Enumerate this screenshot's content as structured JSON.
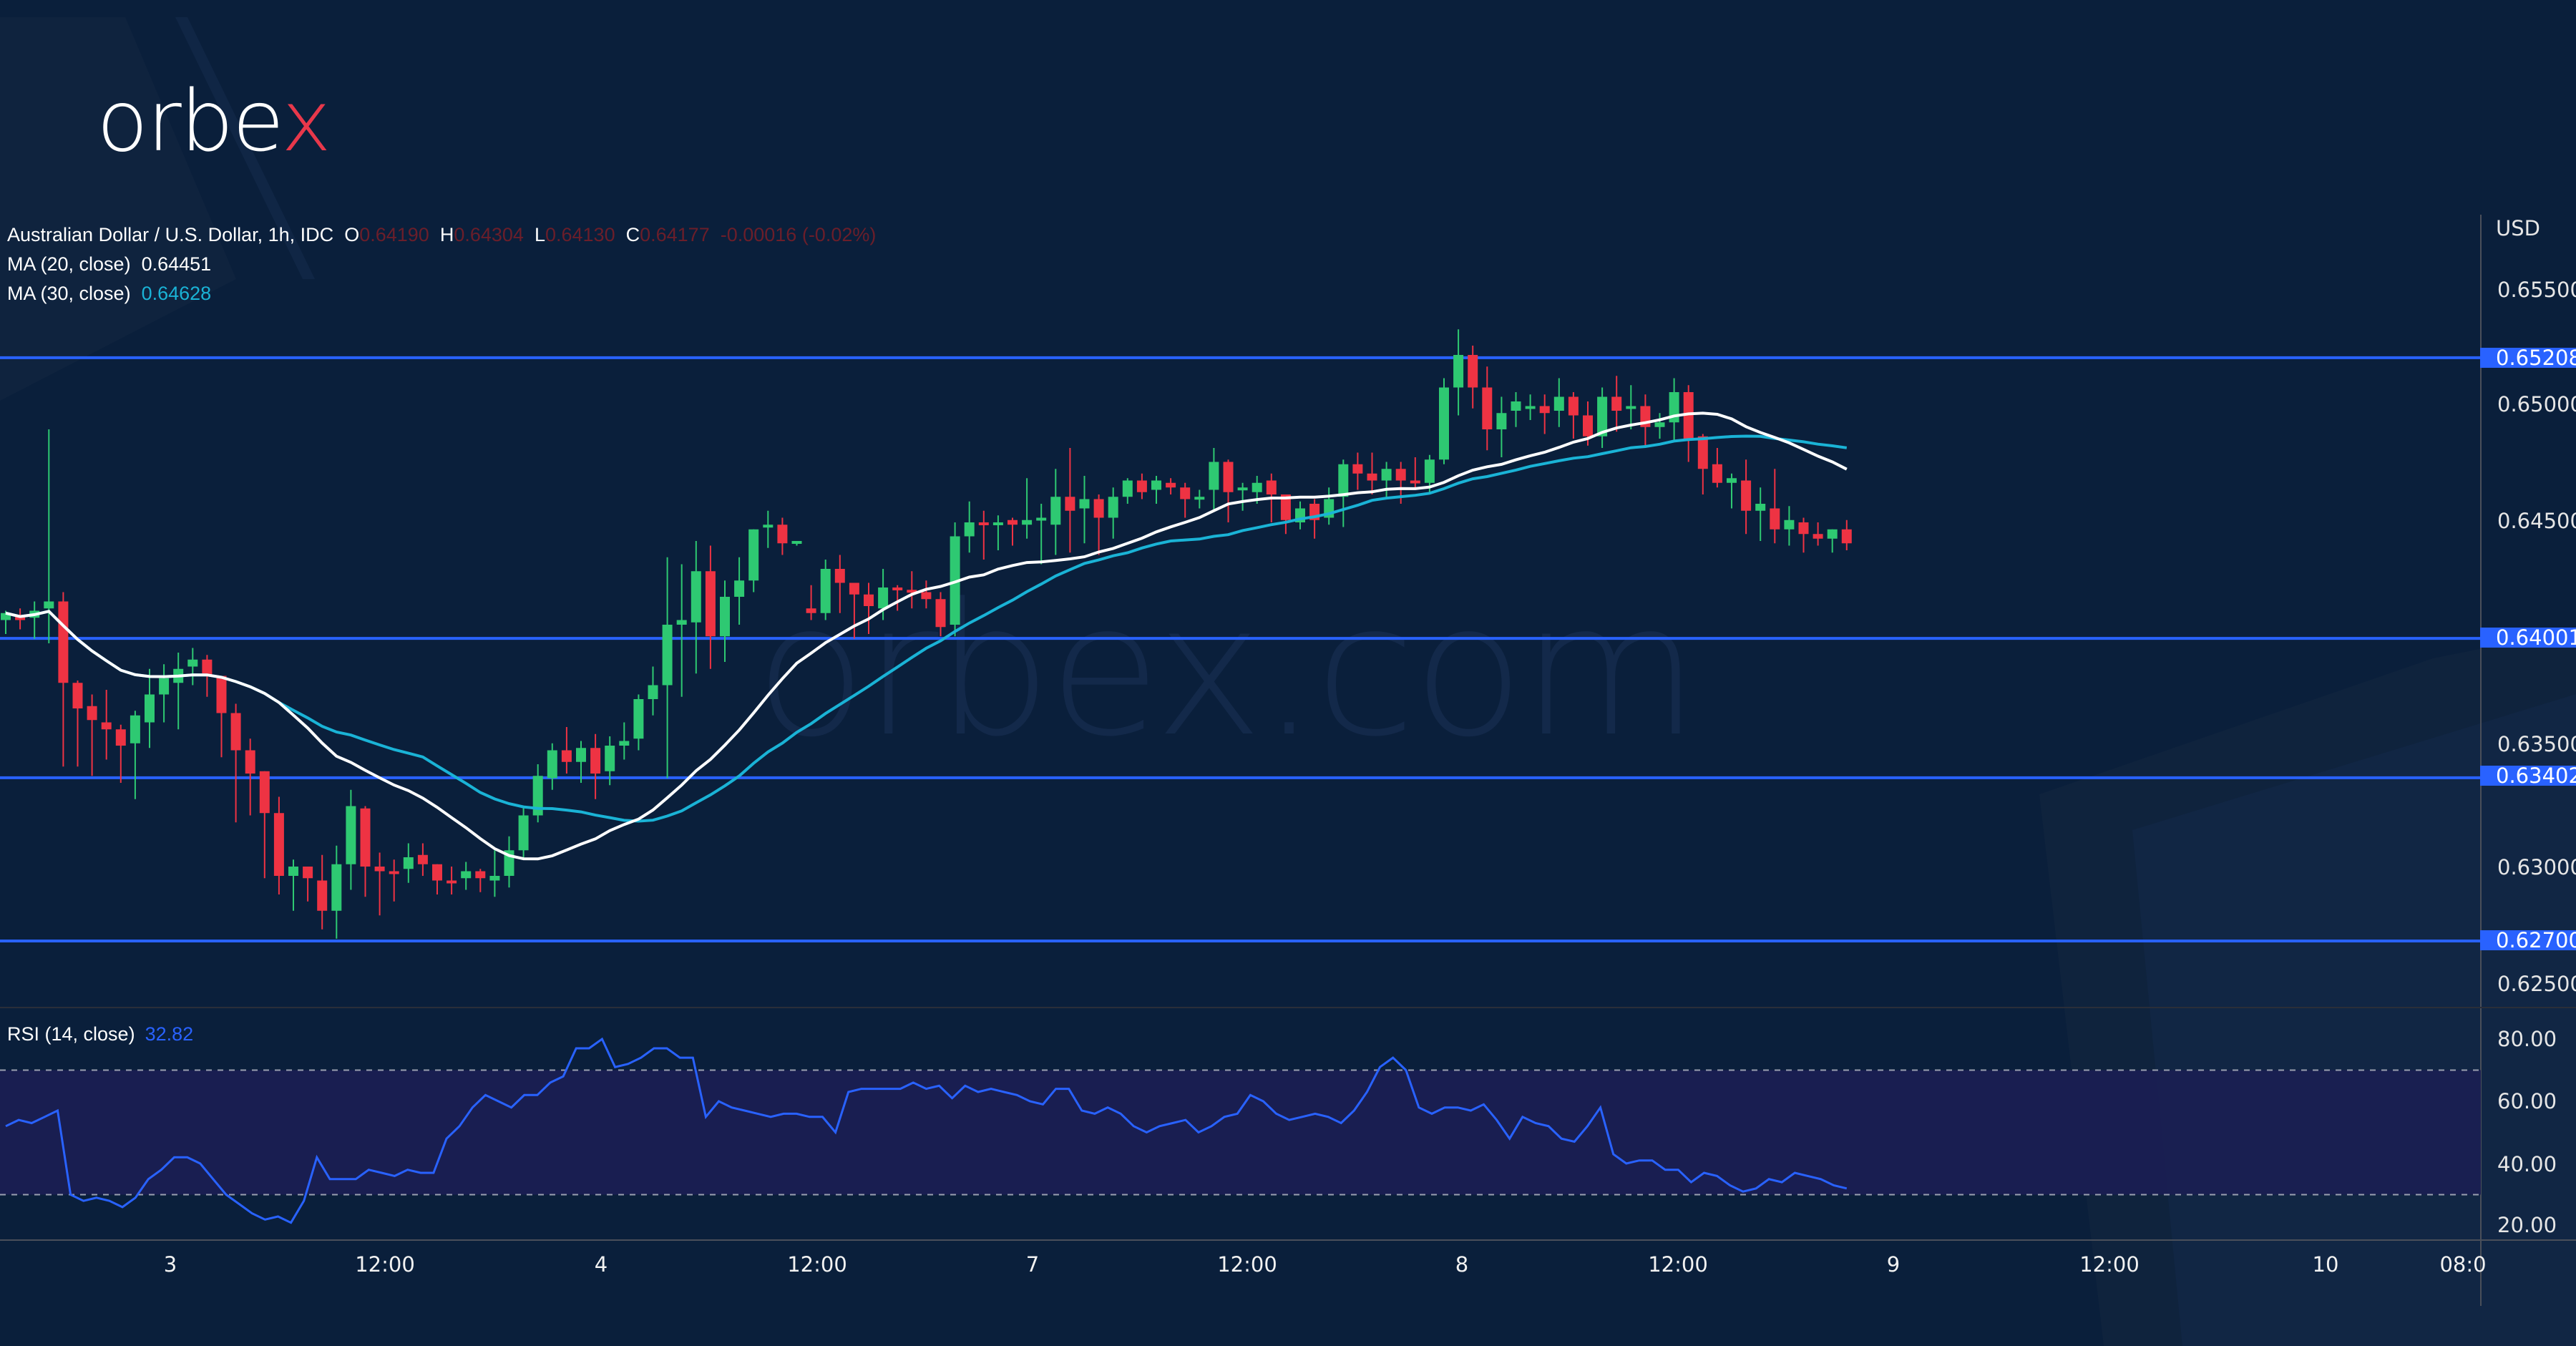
{
  "brand": {
    "logo_text_main": "orbe",
    "logo_text_accent": "x",
    "watermark": "orbex.com"
  },
  "legend": {
    "symbol": "Australian Dollar / U.S. Dollar, 1h, IDC",
    "o_label": "O",
    "o_value": "0.64190",
    "h_label": "H",
    "h_value": "0.64304",
    "l_label": "L",
    "l_value": "0.64130",
    "c_label": "C",
    "c_value": "0.64177",
    "change": "-0.00016 (-0.02%)",
    "ma20_label": "MA (20, close)",
    "ma20_value": "0.64451",
    "ma30_label": "MA (30, close)",
    "ma30_value": "0.64628"
  },
  "rsi": {
    "label": "RSI (14, close)",
    "value": "32.82"
  },
  "axis": {
    "currency": "USD",
    "price_ticks": [
      "0.65500",
      "0.65000",
      "0.64500",
      "0.63500",
      "0.63000",
      "0.62500"
    ],
    "rsi_ticks": [
      "80.00",
      "60.00",
      "40.00",
      "20.00"
    ],
    "time_ticks": [
      "3",
      "12:00",
      "4",
      "12:00",
      "7",
      "12:00",
      "8",
      "12:00",
      "9",
      "12:00",
      "10",
      "08:0"
    ]
  },
  "levels": [
    {
      "label": "0.65208",
      "value": 0.65208
    },
    {
      "label": "0.64001",
      "value": 0.64001
    },
    {
      "label": "0.63402",
      "value": 0.63402
    },
    {
      "label": "0.62700",
      "value": 0.627
    }
  ],
  "colors": {
    "up": "#2ec972",
    "down": "#ee3343",
    "ma20": "#ffffff",
    "ma30": "#1ab3d6",
    "level": "#2962ff",
    "rsi": "#2962ff",
    "background": "#0a1f3b",
    "rsi_band": "#1a1f52"
  },
  "chart_data": {
    "type": "candlestick",
    "title": "Australian Dollar / U.S. Dollar, 1h, IDC",
    "ylabel": "USD",
    "ylim": [
      0.6238,
      0.6575
    ],
    "horizontal_levels": [
      0.65208,
      0.64001,
      0.63402,
      0.627
    ],
    "x_ticks": [
      {
        "label": "3",
        "index": 11
      },
      {
        "label": "12:00",
        "index": 26
      },
      {
        "label": "4",
        "index": 41
      },
      {
        "label": "12:00",
        "index": 56
      },
      {
        "label": "7",
        "index": 71
      },
      {
        "label": "12:00",
        "index": 86
      },
      {
        "label": "8",
        "index": 101
      },
      {
        "label": "12:00",
        "index": 116
      },
      {
        "label": "9",
        "index": 131
      },
      {
        "label": "12:00",
        "index": 146
      },
      {
        "label": "10",
        "index": 161
      },
      {
        "label": "08:0",
        "index": 170
      }
    ],
    "candles": [
      [
        0.6408,
        0.6411,
        0.6402,
        0.6412
      ],
      [
        0.641,
        0.6408,
        0.6404,
        0.6413
      ],
      [
        0.6409,
        0.6412,
        0.64,
        0.6416
      ],
      [
        0.6413,
        0.6416,
        0.6398,
        0.649
      ],
      [
        0.6416,
        0.6381,
        0.6345,
        0.642
      ],
      [
        0.6381,
        0.637,
        0.6345,
        0.6382
      ],
      [
        0.6371,
        0.6365,
        0.6341,
        0.6376
      ],
      [
        0.6364,
        0.6361,
        0.6348,
        0.6378
      ],
      [
        0.6361,
        0.6354,
        0.6338,
        0.6363
      ],
      [
        0.6355,
        0.6367,
        0.6331,
        0.6369
      ],
      [
        0.6364,
        0.6376,
        0.6353,
        0.6387
      ],
      [
        0.6376,
        0.6383,
        0.6364,
        0.6389
      ],
      [
        0.6381,
        0.6387,
        0.6361,
        0.6394
      ],
      [
        0.6388,
        0.6391,
        0.638,
        0.6396
      ],
      [
        0.6391,
        0.6384,
        0.6375,
        0.6393
      ],
      [
        0.6384,
        0.6368,
        0.6349,
        0.6384
      ],
      [
        0.6368,
        0.6352,
        0.6321,
        0.6372
      ],
      [
        0.6352,
        0.6342,
        0.6324,
        0.6357
      ],
      [
        0.6343,
        0.6325,
        0.6297,
        0.6343
      ],
      [
        0.6325,
        0.6298,
        0.629,
        0.6332
      ],
      [
        0.6298,
        0.6302,
        0.6283,
        0.6305
      ],
      [
        0.6302,
        0.6297,
        0.6287,
        0.6301
      ],
      [
        0.6296,
        0.6283,
        0.6275,
        0.6307
      ],
      [
        0.6283,
        0.6303,
        0.6271,
        0.6311
      ],
      [
        0.6303,
        0.6328,
        0.6292,
        0.6335
      ],
      [
        0.6327,
        0.6302,
        0.6289,
        0.6328
      ],
      [
        0.6302,
        0.63,
        0.6281,
        0.6308
      ],
      [
        0.63,
        0.6299,
        0.6287,
        0.6305
      ],
      [
        0.6301,
        0.6306,
        0.6295,
        0.6312
      ],
      [
        0.6307,
        0.6303,
        0.6298,
        0.6312
      ],
      [
        0.6303,
        0.6296,
        0.629,
        0.6303
      ],
      [
        0.6296,
        0.6295,
        0.629,
        0.6302
      ],
      [
        0.6297,
        0.63,
        0.6292,
        0.6304
      ],
      [
        0.63,
        0.6297,
        0.6291,
        0.6301
      ],
      [
        0.6296,
        0.6298,
        0.6289,
        0.6309
      ],
      [
        0.6298,
        0.6309,
        0.6293,
        0.6315
      ],
      [
        0.6309,
        0.6324,
        0.6305,
        0.6328
      ],
      [
        0.6324,
        0.6341,
        0.6321,
        0.6346
      ],
      [
        0.634,
        0.6352,
        0.6335,
        0.6355
      ],
      [
        0.6352,
        0.6347,
        0.6342,
        0.6362
      ],
      [
        0.6347,
        0.6353,
        0.6338,
        0.6356
      ],
      [
        0.6353,
        0.6342,
        0.6331,
        0.6359
      ],
      [
        0.6343,
        0.6354,
        0.6337,
        0.6358
      ],
      [
        0.6354,
        0.6356,
        0.6348,
        0.6364
      ],
      [
        0.6357,
        0.6374,
        0.6352,
        0.6376
      ],
      [
        0.6374,
        0.638,
        0.6367,
        0.6388
      ],
      [
        0.638,
        0.6406,
        0.634,
        0.6435
      ],
      [
        0.6406,
        0.6408,
        0.6375,
        0.6432
      ],
      [
        0.6407,
        0.6429,
        0.6385,
        0.6442
      ],
      [
        0.6429,
        0.6401,
        0.6387,
        0.644
      ],
      [
        0.6401,
        0.6418,
        0.639,
        0.6425
      ],
      [
        0.6418,
        0.6425,
        0.6406,
        0.6435
      ],
      [
        0.6425,
        0.6447,
        0.642,
        0.6447
      ],
      [
        0.6448,
        0.6449,
        0.6439,
        0.6455
      ],
      [
        0.6449,
        0.6441,
        0.6436,
        0.6452
      ],
      [
        0.6441,
        0.6442,
        0.644,
        0.6442
      ],
      [
        0.6413,
        0.6411,
        0.6408,
        0.6423
      ],
      [
        0.6411,
        0.643,
        0.6408,
        0.6434
      ],
      [
        0.643,
        0.6424,
        0.6411,
        0.6436
      ],
      [
        0.6424,
        0.6419,
        0.64,
        0.6424
      ],
      [
        0.6419,
        0.6414,
        0.6402,
        0.6424
      ],
      [
        0.6413,
        0.6422,
        0.6408,
        0.643
      ],
      [
        0.6422,
        0.6421,
        0.6412,
        0.6423
      ],
      [
        0.6421,
        0.642,
        0.6413,
        0.6429
      ],
      [
        0.642,
        0.6417,
        0.6413,
        0.6425
      ],
      [
        0.6417,
        0.6405,
        0.6401,
        0.642
      ],
      [
        0.6406,
        0.6444,
        0.6401,
        0.645
      ],
      [
        0.6444,
        0.645,
        0.6437,
        0.6459
      ],
      [
        0.645,
        0.6449,
        0.6434,
        0.6455
      ],
      [
        0.6449,
        0.645,
        0.6438,
        0.6453
      ],
      [
        0.6451,
        0.6449,
        0.644,
        0.6452
      ],
      [
        0.6449,
        0.6451,
        0.6443,
        0.6469
      ],
      [
        0.6452,
        0.6452,
        0.6432,
        0.6458
      ],
      [
        0.6449,
        0.6461,
        0.6436,
        0.6473
      ],
      [
        0.6461,
        0.6455,
        0.6437,
        0.6482
      ],
      [
        0.6456,
        0.646,
        0.6441,
        0.647
      ],
      [
        0.646,
        0.6452,
        0.6436,
        0.6462
      ],
      [
        0.6452,
        0.6461,
        0.6443,
        0.6465
      ],
      [
        0.6461,
        0.6468,
        0.6458,
        0.6469
      ],
      [
        0.6468,
        0.6463,
        0.646,
        0.6471
      ],
      [
        0.6464,
        0.6468,
        0.6458,
        0.647
      ],
      [
        0.6467,
        0.6465,
        0.6462,
        0.6469
      ],
      [
        0.6465,
        0.646,
        0.6452,
        0.6467
      ],
      [
        0.6461,
        0.6461,
        0.6456,
        0.6464
      ],
      [
        0.6464,
        0.6476,
        0.6455,
        0.6482
      ],
      [
        0.6476,
        0.6463,
        0.645,
        0.6477
      ],
      [
        0.6464,
        0.6465,
        0.6455,
        0.6467
      ],
      [
        0.6463,
        0.6467,
        0.6458,
        0.647
      ],
      [
        0.6468,
        0.6462,
        0.645,
        0.6471
      ],
      [
        0.6462,
        0.6451,
        0.6445,
        0.646
      ],
      [
        0.645,
        0.6456,
        0.6447,
        0.6459
      ],
      [
        0.6458,
        0.6451,
        0.6443,
        0.646
      ],
      [
        0.6452,
        0.646,
        0.6449,
        0.6465
      ],
      [
        0.6461,
        0.6475,
        0.6448,
        0.6477
      ],
      [
        0.6475,
        0.6471,
        0.6464,
        0.648
      ],
      [
        0.6471,
        0.6468,
        0.6462,
        0.648
      ],
      [
        0.6468,
        0.6473,
        0.646,
        0.6476
      ],
      [
        0.6473,
        0.6468,
        0.6458,
        0.6476
      ],
      [
        0.6468,
        0.6467,
        0.6465,
        0.6478
      ],
      [
        0.6467,
        0.6477,
        0.6463,
        0.6479
      ],
      [
        0.6477,
        0.6508,
        0.6475,
        0.6512
      ],
      [
        0.6508,
        0.6522,
        0.6496,
        0.6533
      ],
      [
        0.6522,
        0.6508,
        0.6499,
        0.6526
      ],
      [
        0.6508,
        0.649,
        0.6481,
        0.6517
      ],
      [
        0.649,
        0.6497,
        0.6478,
        0.6504
      ],
      [
        0.6498,
        0.6502,
        0.6491,
        0.6506
      ],
      [
        0.65,
        0.65,
        0.6494,
        0.6505
      ],
      [
        0.65,
        0.6497,
        0.6488,
        0.6505
      ],
      [
        0.6498,
        0.6504,
        0.6491,
        0.6512
      ],
      [
        0.6504,
        0.6496,
        0.6486,
        0.6506
      ],
      [
        0.6496,
        0.6487,
        0.6483,
        0.6502
      ],
      [
        0.6487,
        0.6504,
        0.6482,
        0.6508
      ],
      [
        0.6504,
        0.6498,
        0.6489,
        0.6513
      ],
      [
        0.6499,
        0.65,
        0.649,
        0.6509
      ],
      [
        0.65,
        0.6491,
        0.6483,
        0.6505
      ],
      [
        0.6491,
        0.6493,
        0.6486,
        0.6497
      ],
      [
        0.6493,
        0.6506,
        0.6485,
        0.6512
      ],
      [
        0.6506,
        0.6486,
        0.6476,
        0.6509
      ],
      [
        0.6487,
        0.6473,
        0.6462,
        0.6488
      ],
      [
        0.6475,
        0.6467,
        0.6465,
        0.6482
      ],
      [
        0.6467,
        0.6469,
        0.6456,
        0.6471
      ],
      [
        0.6468,
        0.6455,
        0.6445,
        0.6477
      ],
      [
        0.6455,
        0.6458,
        0.6442,
        0.6465
      ],
      [
        0.6456,
        0.6447,
        0.6441,
        0.6473
      ],
      [
        0.6447,
        0.6451,
        0.644,
        0.6457
      ],
      [
        0.645,
        0.6445,
        0.6437,
        0.6452
      ],
      [
        0.6445,
        0.6443,
        0.644,
        0.645
      ],
      [
        0.6443,
        0.6447,
        0.6437,
        0.6447
      ],
      [
        0.6447,
        0.6441,
        0.6438,
        0.6451
      ]
    ],
    "ma20": "white line, last value 0.64451",
    "ma30": "cyan line, last value 0.64628"
  },
  "rsi_data": {
    "ylim": [
      15,
      90
    ],
    "overbought": 70,
    "oversold": 30,
    "values": [
      52,
      54,
      53,
      55,
      57,
      30,
      28,
      29,
      28,
      26,
      29,
      35,
      38,
      42,
      42,
      40,
      35,
      30,
      27,
      24,
      22,
      23,
      21,
      28,
      42,
      35,
      35,
      35,
      38,
      37,
      36,
      38,
      37,
      37,
      48,
      52,
      58,
      62,
      60,
      58,
      62,
      62,
      66,
      68,
      77,
      77,
      80,
      71,
      72,
      74,
      77,
      77,
      74,
      74,
      55,
      60,
      58,
      57,
      56,
      55,
      56,
      56,
      55,
      55,
      50,
      63,
      64,
      64,
      64,
      64,
      66,
      64,
      65,
      61,
      65,
      63,
      64,
      63,
      62,
      60,
      59,
      64,
      64,
      57,
      56,
      58,
      56,
      52,
      50,
      52,
      53,
      54,
      50,
      52,
      55,
      56,
      62,
      60,
      56,
      54,
      55,
      56,
      55,
      53,
      57,
      63,
      71,
      74,
      70,
      58,
      56,
      58,
      58,
      57,
      59,
      54,
      48,
      55,
      53,
      52,
      48,
      47,
      52,
      58,
      43,
      40,
      41,
      41,
      38,
      38,
      34,
      37,
      36,
      33,
      31,
      32,
      35,
      34,
      37,
      36,
      35,
      33,
      32
    ]
  }
}
